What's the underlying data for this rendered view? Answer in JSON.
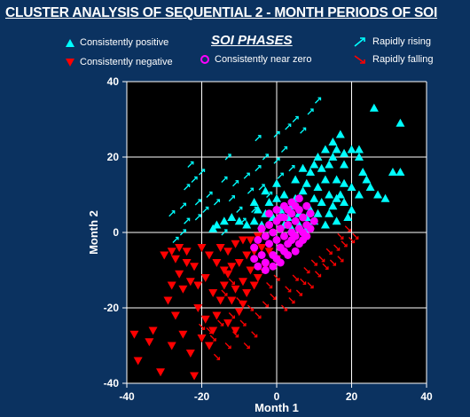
{
  "title": "CLUSTER ANALYSIS OF SEQUENTIAL 2 - MONTH PERIODS OF SOI",
  "legend": {
    "heading": "SOI PHASES",
    "items": [
      {
        "label": "Consistently positive",
        "symbol": "triangle-up",
        "color": "#00ffff"
      },
      {
        "label": "Consistently negative",
        "symbol": "triangle-down",
        "color": "#ff0000"
      },
      {
        "label": "Consistently near zero",
        "symbol": "circle",
        "color": "#ff00ff"
      },
      {
        "label": "Rapidly rising",
        "symbol": "arrow-up-right",
        "color": "#00ffff"
      },
      {
        "label": "Rapidly falling",
        "symbol": "arrow-down-right",
        "color": "#ff0000"
      }
    ]
  },
  "colors": {
    "background": "#0b3260",
    "plot_background": "#000000",
    "positive": "#00ffff",
    "negative": "#ff0000",
    "near_zero": "#ff00ff",
    "grid": "#ffffff"
  },
  "chart_data": {
    "type": "scatter",
    "xlabel": "Month 1",
    "ylabel": "Month 2",
    "xlim": [
      -40,
      40
    ],
    "ylim": [
      -40,
      40
    ],
    "xticks": [
      "-40",
      "-20",
      "0",
      "20",
      "40"
    ],
    "yticks": [
      "40",
      "20",
      "0",
      "-20",
      "-40"
    ],
    "grid": true,
    "series": [
      {
        "name": "Consistently positive",
        "marker": "triangle-up",
        "color": "#00ffff",
        "points": [
          [
            26,
            33
          ],
          [
            33,
            29
          ],
          [
            22,
            20
          ],
          [
            23,
            16
          ],
          [
            31,
            16
          ],
          [
            33,
            16
          ],
          [
            27,
            10
          ],
          [
            29,
            9
          ],
          [
            18,
            21
          ],
          [
            20,
            22
          ],
          [
            22,
            22
          ],
          [
            16,
            22
          ],
          [
            15,
            20
          ],
          [
            18,
            18
          ],
          [
            12,
            17
          ],
          [
            14,
            18
          ],
          [
            9,
            16
          ],
          [
            10,
            18
          ],
          [
            13,
            14
          ],
          [
            16,
            14
          ],
          [
            18,
            13
          ],
          [
            20,
            12
          ],
          [
            11,
            12
          ],
          [
            14,
            10
          ],
          [
            8,
            13
          ],
          [
            7,
            11
          ],
          [
            10,
            9
          ],
          [
            12,
            8
          ],
          [
            15,
            7
          ],
          [
            18,
            8
          ],
          [
            20,
            6
          ],
          [
            5,
            9
          ],
          [
            4,
            7
          ],
          [
            6,
            5
          ],
          [
            8,
            4
          ],
          [
            10,
            3
          ],
          [
            13,
            2
          ],
          [
            16,
            3
          ],
          [
            19,
            4
          ],
          [
            3,
            4
          ],
          [
            2,
            2
          ],
          [
            1,
            6
          ],
          [
            -1,
            4
          ],
          [
            -3,
            5
          ],
          [
            -5,
            6
          ],
          [
            -2,
            8
          ],
          [
            0,
            9
          ],
          [
            2,
            10
          ],
          [
            -4,
            2
          ],
          [
            -6,
            3
          ],
          [
            -8,
            2
          ],
          [
            -10,
            3
          ],
          [
            -12,
            4
          ],
          [
            -14,
            3
          ],
          [
            -16,
            2
          ],
          [
            -17,
            1
          ],
          [
            -6,
            8
          ],
          [
            -3,
            11
          ],
          [
            0,
            13
          ],
          [
            5,
            14
          ],
          [
            7,
            17
          ],
          [
            11,
            20
          ],
          [
            13,
            22
          ],
          [
            15,
            24
          ],
          [
            17,
            26
          ],
          [
            16,
            9
          ],
          [
            22,
            10
          ],
          [
            24,
            14
          ],
          [
            25,
            12
          ],
          [
            9,
            6
          ],
          [
            11,
            5
          ],
          [
            14,
            5
          ],
          [
            17,
            10
          ],
          [
            6,
            2
          ],
          [
            4,
            1
          ],
          [
            8,
            1
          ]
        ]
      },
      {
        "name": "Consistently negative",
        "marker": "triangle-down",
        "color": "#ff0000",
        "points": [
          [
            -38,
            -27
          ],
          [
            -37,
            -34
          ],
          [
            -34,
            -29
          ],
          [
            -33,
            -26
          ],
          [
            -31,
            -37
          ],
          [
            -28,
            -30
          ],
          [
            -27,
            -22
          ],
          [
            -29,
            -18
          ],
          [
            -28,
            -14
          ],
          [
            -26,
            -11
          ],
          [
            -27,
            -7
          ],
          [
            -24,
            -5
          ],
          [
            -22,
            -9
          ],
          [
            -25,
            -15
          ],
          [
            -23,
            -13
          ],
          [
            -21,
            -20
          ],
          [
            -19,
            -23
          ],
          [
            -17,
            -26
          ],
          [
            -22,
            -38
          ],
          [
            -20,
            -28
          ],
          [
            -18,
            -30
          ],
          [
            -16,
            -22
          ],
          [
            -15,
            -18
          ],
          [
            -14,
            -14
          ],
          [
            -13,
            -11
          ],
          [
            -12,
            -9
          ],
          [
            -10,
            -8
          ],
          [
            -8,
            -6
          ],
          [
            -6,
            -5
          ],
          [
            -4,
            -4
          ],
          [
            -2,
            -5
          ],
          [
            0,
            -7
          ],
          [
            -11,
            -15
          ],
          [
            -9,
            -13
          ],
          [
            -7,
            -10
          ],
          [
            -5,
            -12
          ],
          [
            -3,
            -9
          ],
          [
            -16,
            -8
          ],
          [
            -18,
            -6
          ],
          [
            -20,
            -4
          ],
          [
            -15,
            -4
          ],
          [
            -13,
            -5
          ],
          [
            -11,
            -3
          ],
          [
            -9,
            -2
          ],
          [
            -7,
            -2
          ],
          [
            -5,
            -1
          ],
          [
            -14,
            -10
          ],
          [
            -12,
            -18
          ],
          [
            -10,
            -21
          ],
          [
            -8,
            -16
          ],
          [
            -6,
            -14
          ],
          [
            -19,
            -12
          ],
          [
            -21,
            -14
          ],
          [
            -24,
            -8
          ],
          [
            -26,
            -4
          ],
          [
            -28,
            -5
          ],
          [
            -30,
            -6
          ],
          [
            -17,
            -16
          ],
          [
            -13,
            -24
          ],
          [
            -11,
            -26
          ],
          [
            -9,
            -19
          ],
          [
            -23,
            -32
          ],
          [
            -25,
            -27
          ]
        ]
      },
      {
        "name": "Consistently near zero",
        "marker": "circle",
        "color": "#ff00ff",
        "points": [
          [
            -6,
            -4
          ],
          [
            -5,
            -2
          ],
          [
            -4,
            -6
          ],
          [
            -3,
            -1
          ],
          [
            -2,
            -3
          ],
          [
            -1,
            0
          ],
          [
            0,
            -2
          ],
          [
            1,
            1
          ],
          [
            2,
            -1
          ],
          [
            3,
            2
          ],
          [
            4,
            0
          ],
          [
            5,
            3
          ],
          [
            6,
            1
          ],
          [
            7,
            4
          ],
          [
            8,
            2
          ],
          [
            9,
            5
          ],
          [
            -4,
            1
          ],
          [
            -2,
            2
          ],
          [
            0,
            3
          ],
          [
            2,
            4
          ],
          [
            4,
            5
          ],
          [
            6,
            6
          ],
          [
            8,
            7
          ],
          [
            -3,
            -8
          ],
          [
            -1,
            -6
          ],
          [
            1,
            -4
          ],
          [
            3,
            -3
          ],
          [
            5,
            -1
          ],
          [
            7,
            0
          ],
          [
            9,
            1
          ],
          [
            10,
            3
          ],
          [
            -5,
            -9
          ],
          [
            -3,
            -10
          ],
          [
            0,
            -7
          ],
          [
            2,
            -5
          ],
          [
            4,
            -2
          ],
          [
            6,
            -3
          ],
          [
            8,
            -1
          ],
          [
            -6,
            -7
          ],
          [
            -1,
            -9
          ],
          [
            1,
            -8
          ],
          [
            3,
            -6
          ],
          [
            5,
            -5
          ],
          [
            7,
            -2
          ],
          [
            -2,
            5
          ],
          [
            0,
            6
          ],
          [
            2,
            7
          ],
          [
            4,
            8
          ],
          [
            6,
            9
          ],
          [
            1,
            4
          ],
          [
            3,
            6
          ],
          [
            5,
            7
          ]
        ]
      },
      {
        "name": "Rapidly rising",
        "marker": "arrow-up-right",
        "color": "#00ffff",
        "points": [
          [
            -25,
            0
          ],
          [
            -27,
            -2
          ],
          [
            -24,
            3
          ],
          [
            -28,
            5
          ],
          [
            -24,
            12
          ],
          [
            -22,
            14
          ],
          [
            -21,
            8
          ],
          [
            -25,
            7
          ],
          [
            -18,
            10
          ],
          [
            -20,
            16
          ],
          [
            -23,
            18
          ],
          [
            -14,
            14
          ],
          [
            -11,
            13
          ],
          [
            -8,
            15
          ],
          [
            -13,
            20
          ],
          [
            -5,
            17
          ],
          [
            -3,
            20
          ],
          [
            0,
            19
          ],
          [
            2,
            22
          ],
          [
            -5,
            25
          ],
          [
            0,
            26
          ],
          [
            3,
            28
          ],
          [
            7,
            27
          ],
          [
            5,
            30
          ],
          [
            9,
            32
          ],
          [
            11,
            35
          ],
          [
            -4,
            12
          ],
          [
            -7,
            11
          ],
          [
            -2,
            10
          ],
          [
            1,
            15
          ],
          [
            4,
            17
          ],
          [
            -10,
            6
          ],
          [
            -12,
            9
          ],
          [
            -16,
            8
          ],
          [
            -19,
            6
          ],
          [
            -21,
            4
          ],
          [
            -17,
            1
          ],
          [
            -14,
            0
          ],
          [
            -9,
            3
          ],
          [
            -6,
            6
          ]
        ]
      },
      {
        "name": "Rapidly falling",
        "marker": "arrow-down-right",
        "color": "#ff0000",
        "points": [
          [
            -4,
            -10
          ],
          [
            -2,
            -14
          ],
          [
            0,
            -12
          ],
          [
            3,
            -15
          ],
          [
            5,
            -12
          ],
          [
            8,
            -10
          ],
          [
            10,
            -8
          ],
          [
            12,
            -7
          ],
          [
            14,
            -5
          ],
          [
            16,
            -4
          ],
          [
            18,
            -3
          ],
          [
            20,
            -2
          ],
          [
            -7,
            -20
          ],
          [
            -5,
            -22
          ],
          [
            -9,
            -24
          ],
          [
            -11,
            -27
          ],
          [
            -13,
            -30
          ],
          [
            -8,
            -30
          ],
          [
            -6,
            -27
          ],
          [
            -3,
            -19
          ],
          [
            -1,
            -17
          ],
          [
            2,
            -20
          ],
          [
            4,
            -18
          ],
          [
            6,
            -16
          ],
          [
            7,
            -13
          ],
          [
            11,
            -11
          ],
          [
            13,
            -9
          ],
          [
            15,
            -8
          ],
          [
            17,
            -7
          ],
          [
            -15,
            -24
          ],
          [
            -17,
            -28
          ],
          [
            -12,
            -22
          ],
          [
            -10,
            -18
          ],
          [
            -18,
            -26
          ],
          [
            -16,
            -33
          ],
          [
            -20,
            -25
          ],
          [
            21,
            -1
          ],
          [
            19,
            1
          ],
          [
            17,
            -1
          ],
          [
            9,
            -14
          ],
          [
            -14,
            -16
          ],
          [
            -12,
            -13
          ]
        ]
      }
    ]
  }
}
